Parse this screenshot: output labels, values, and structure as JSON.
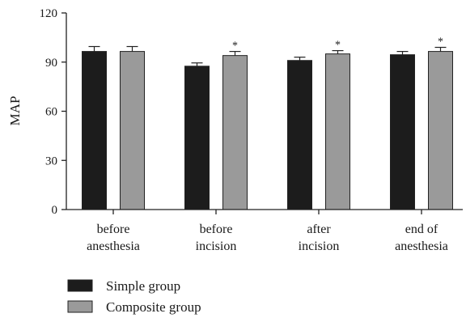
{
  "chart_data": {
    "type": "bar",
    "title": "",
    "xlabel": "",
    "ylabel": "MAP",
    "ylim": [
      0,
      120
    ],
    "yticks": [
      "0",
      "30",
      "60",
      "90",
      "120"
    ],
    "categories": [
      [
        "before",
        "anesthesia"
      ],
      [
        "before",
        "incision"
      ],
      [
        "after",
        "incision"
      ],
      [
        "end of",
        "anesthesia"
      ]
    ],
    "series": [
      {
        "name": "Simple group",
        "color": "#1c1c1c",
        "values": [
          96.5,
          87.5,
          91.0,
          94.5
        ],
        "errors": [
          3.0,
          2.0,
          2.0,
          2.0
        ],
        "significance": [
          "",
          "",
          "",
          ""
        ]
      },
      {
        "name": "Composite group",
        "color": "#9a9a9a",
        "values": [
          96.5,
          94.0,
          95.0,
          96.5
        ],
        "errors": [
          3.0,
          2.5,
          2.0,
          2.5
        ],
        "significance": [
          "",
          "*",
          "*",
          "*"
        ]
      }
    ],
    "legend_position": "bottom-left",
    "grid": false
  }
}
